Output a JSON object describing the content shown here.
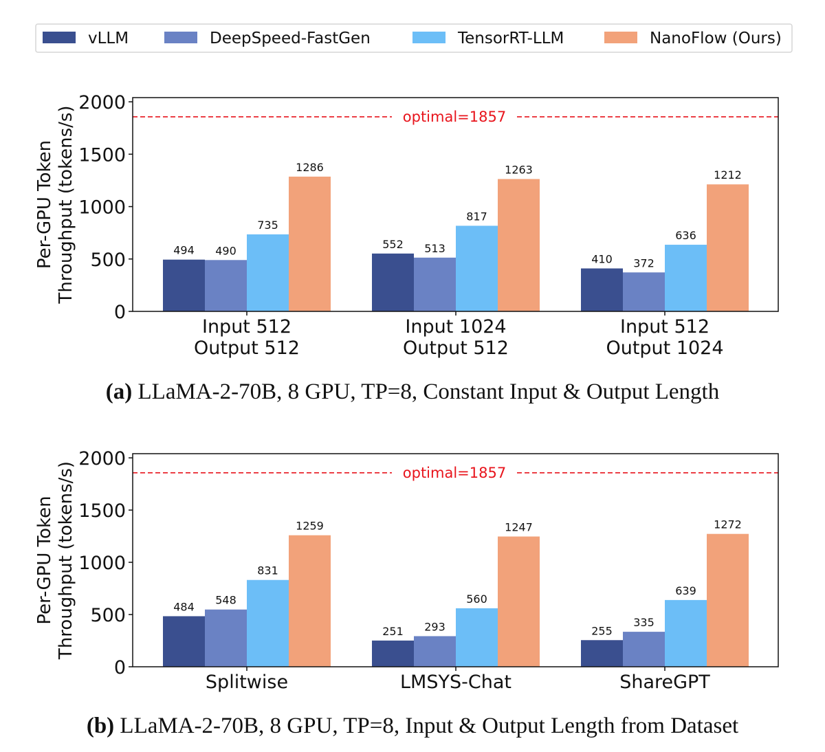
{
  "legend": {
    "placement": "top",
    "entries": [
      {
        "name": "vLLM",
        "color": "#3a4f8f"
      },
      {
        "name": "DeepSpeed-FastGen",
        "color": "#6a82c4"
      },
      {
        "name": "TensorRT-LLM",
        "color": "#6cbef7"
      },
      {
        "name": "NanoFlow (Ours)",
        "color": "#f2a27a"
      }
    ]
  },
  "chart_data": [
    {
      "type": "bar",
      "caption_label": "(a)",
      "caption": "LLaMA-2-70B, 8 GPU, TP=8, Constant Input & Output Length",
      "ylabel_lines": [
        "Per-GPU Token",
        "Throughput (tokens/s)"
      ],
      "ylim": [
        0,
        2040
      ],
      "yticks": [
        0,
        500,
        1000,
        1500,
        2000
      ],
      "categories": [
        [
          "Input 512",
          "Output 512"
        ],
        [
          "Input 1024",
          "Output 512"
        ],
        [
          "Input 512",
          "Output 1024"
        ]
      ],
      "series": [
        {
          "name": "vLLM",
          "values": [
            494,
            552,
            410
          ]
        },
        {
          "name": "DeepSpeed-FastGen",
          "values": [
            490,
            513,
            372
          ]
        },
        {
          "name": "TensorRT-LLM",
          "values": [
            735,
            817,
            636
          ]
        },
        {
          "name": "NanoFlow (Ours)",
          "values": [
            1286,
            1263,
            1212
          ]
        }
      ],
      "reference_line": {
        "value": 1857,
        "label": "optimal=1857",
        "color": "#e8141c"
      },
      "grid": false
    },
    {
      "type": "bar",
      "caption_label": "(b)",
      "caption": "LLaMA-2-70B, 8 GPU, TP=8, Input & Output Length from Dataset",
      "ylabel_lines": [
        "Per-GPU Token",
        "Throughput (tokens/s)"
      ],
      "ylim": [
        0,
        2040
      ],
      "yticks": [
        0,
        500,
        1000,
        1500,
        2000
      ],
      "categories": [
        [
          "Splitwise"
        ],
        [
          "LMSYS-Chat"
        ],
        [
          "ShareGPT"
        ]
      ],
      "series": [
        {
          "name": "vLLM",
          "values": [
            484,
            251,
            255
          ]
        },
        {
          "name": "DeepSpeed-FastGen",
          "values": [
            548,
            293,
            335
          ]
        },
        {
          "name": "TensorRT-LLM",
          "values": [
            831,
            560,
            639
          ]
        },
        {
          "name": "NanoFlow (Ours)",
          "values": [
            1259,
            1247,
            1272
          ]
        }
      ],
      "reference_line": {
        "value": 1857,
        "label": "optimal=1857",
        "color": "#e8141c"
      },
      "grid": false
    }
  ]
}
